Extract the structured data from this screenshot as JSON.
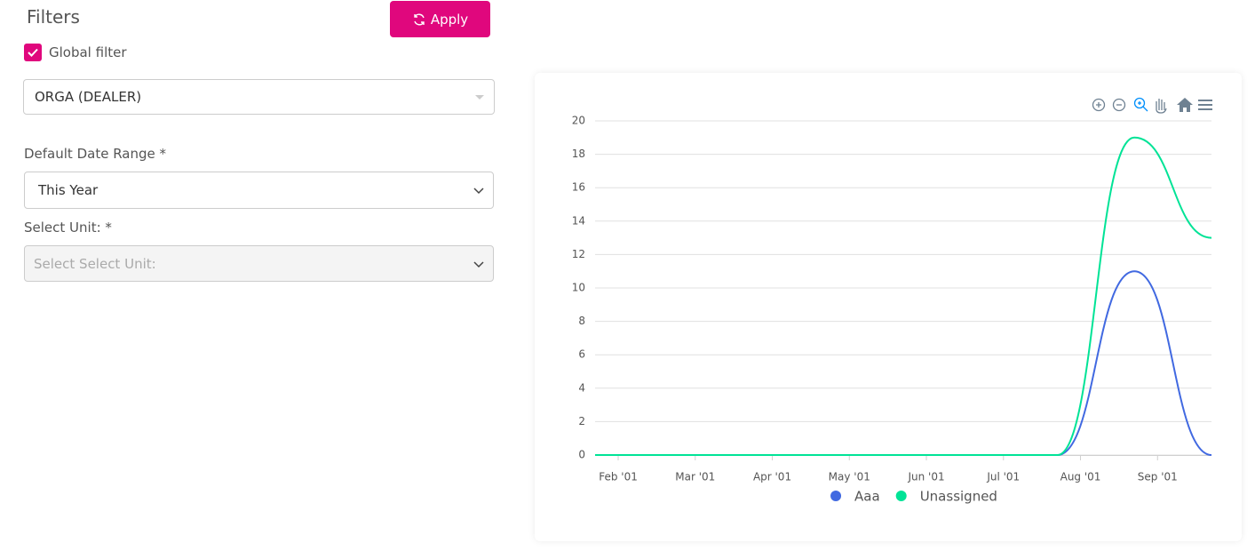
{
  "filters": {
    "title": "Filters",
    "apply": "Apply",
    "global_filter": "Global filter",
    "org_select": "ORGA (DEALER)",
    "date_range_label": "Default Date Range *",
    "date_range_value": "This Year",
    "unit_label": "Select Unit: *",
    "unit_placeholder": "Select Select Unit:"
  },
  "chart_data": {
    "type": "line",
    "smooth": true,
    "grid": true,
    "legend": "bottom",
    "x": [
      1.7,
      2.7,
      3.7,
      4.7,
      5.7,
      6.7,
      7.7,
      8.7,
      9.7
    ],
    "xlim": [
      1.7,
      9.7
    ],
    "xticks": [
      {
        "value": 2,
        "label": "Feb '01"
      },
      {
        "value": 3,
        "label": "Mar '01"
      },
      {
        "value": 4,
        "label": "Apr '01"
      },
      {
        "value": 5,
        "label": "May '01"
      },
      {
        "value": 6,
        "label": "Jun '01"
      },
      {
        "value": 7,
        "label": "Jul '01"
      },
      {
        "value": 8,
        "label": "Aug '01"
      },
      {
        "value": 9,
        "label": "Sep '01"
      }
    ],
    "ylim": [
      0,
      20
    ],
    "yticks": [
      0,
      2,
      4,
      6,
      8,
      10,
      12,
      14,
      16,
      18,
      20
    ],
    "series": [
      {
        "name": "Aaa",
        "color": "#4169e1",
        "values": [
          0,
          0,
          0,
          0,
          0,
          0,
          0,
          11,
          0
        ]
      },
      {
        "name": "Unassigned",
        "color": "#00e396",
        "values": [
          0,
          0,
          0,
          0,
          0,
          0,
          0,
          19,
          13
        ]
      }
    ]
  }
}
